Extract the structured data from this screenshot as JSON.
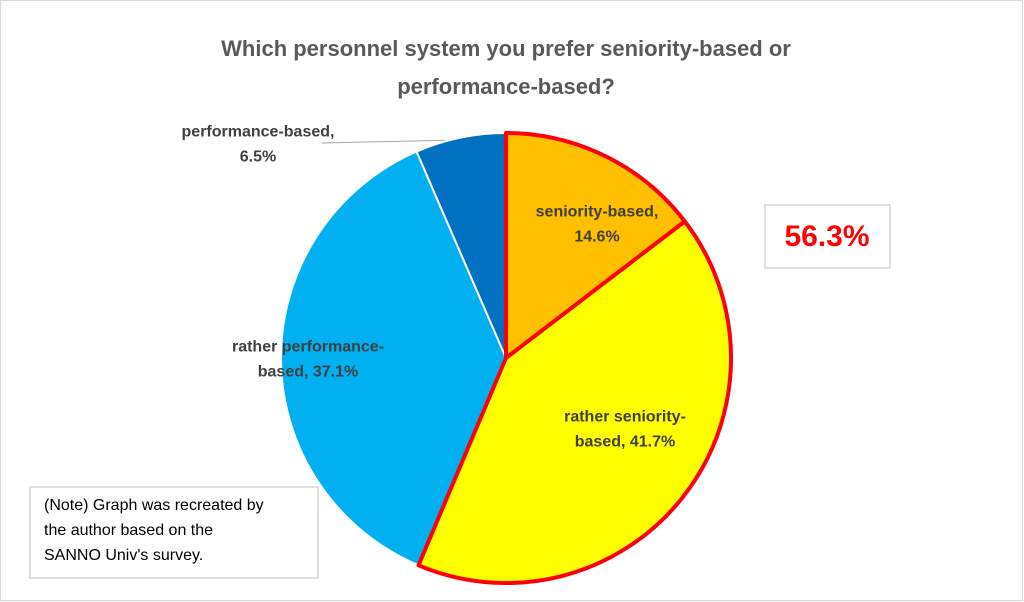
{
  "chart_data": {
    "type": "pie",
    "title": [
      "Which personnel system you prefer seniority-based or",
      "performance-based?"
    ],
    "values": [
      14.6,
      41.7,
      37.1,
      6.5
    ],
    "value_labels": [
      [
        "seniority-based,",
        "14.6%"
      ],
      [
        "rather seniority-",
        "based, 41.7%"
      ],
      [
        "rather performance-",
        "based, 37.1%"
      ],
      [
        "performance-based,",
        "6.5%"
      ]
    ],
    "colors": [
      "#FFC000",
      "#FFFF00",
      "#00B0F0",
      "#0070C0"
    ],
    "annotation": "56.3%",
    "note": [
      "(Note) Graph was recreated  by",
      "the author based on the",
      "SANNO Univ's survey."
    ]
  }
}
